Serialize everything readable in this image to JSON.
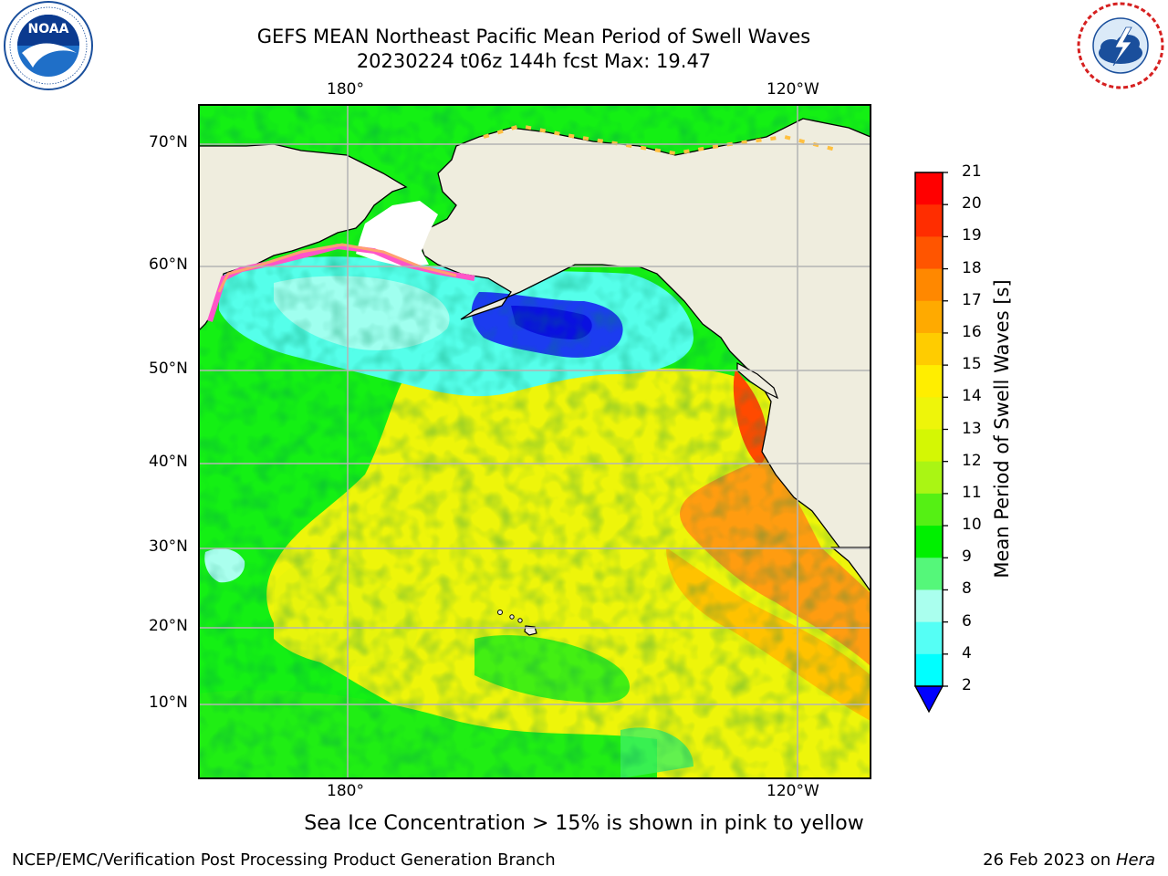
{
  "title": {
    "line1": "GEFS MEAN Northeast Pacific Mean Period of Swell Waves",
    "line2": "20230224 t06z 144h fcst   Max: 19.47"
  },
  "logos": {
    "left": {
      "name": "NOAA",
      "ring_text": "NATIONAL OCEANIC AND ATMOSPHERIC ADMINISTRATION · U.S. DEPARTMENT OF COMMERCE"
    },
    "right": {
      "name": "NATIONAL WEATHER SERVICE"
    }
  },
  "map": {
    "top_labels": [
      "180°",
      "120°W"
    ],
    "bottom_labels": [
      "180°",
      "120°W"
    ],
    "lat_labels": [
      "70°N",
      "60°N",
      "50°N",
      "40°N",
      "30°N",
      "20°N",
      "10°N"
    ],
    "colors": {
      "land": "#efedde",
      "ocean_green": "#14f014",
      "ocean_yellow": "#eef50a",
      "ocean_orange": "#ff9c10",
      "ocean_cyan": "#55ffea",
      "ocean_blue": "#1c3cf0",
      "ice_pink": "#ff55c8"
    }
  },
  "colorbar": {
    "label": "Mean Period of Swell Waves [s]",
    "ticks": [
      "21",
      "20",
      "19",
      "18",
      "17",
      "16",
      "15",
      "14",
      "13",
      "12",
      "11",
      "10",
      "9",
      "8",
      "6",
      "4",
      "2"
    ],
    "colors": [
      "#ff0000",
      "#ff2d00",
      "#ff5500",
      "#ff8800",
      "#ffaa00",
      "#ffcc00",
      "#ffee00",
      "#eef50a",
      "#d4f704",
      "#aaf514",
      "#55f014",
      "#00f000",
      "#55f77a",
      "#aaffee",
      "#55fff5",
      "#00ffff",
      "#00d8ff",
      "#0080ff",
      "#0000ff"
    ]
  },
  "footer": {
    "note": "Sea Ice Concentration > 15% is shown in pink to yellow",
    "credit": "NCEP/EMC/Verification Post Processing Product Generation Branch",
    "date": "26 Feb 2023 on ",
    "machine": "Hera"
  }
}
